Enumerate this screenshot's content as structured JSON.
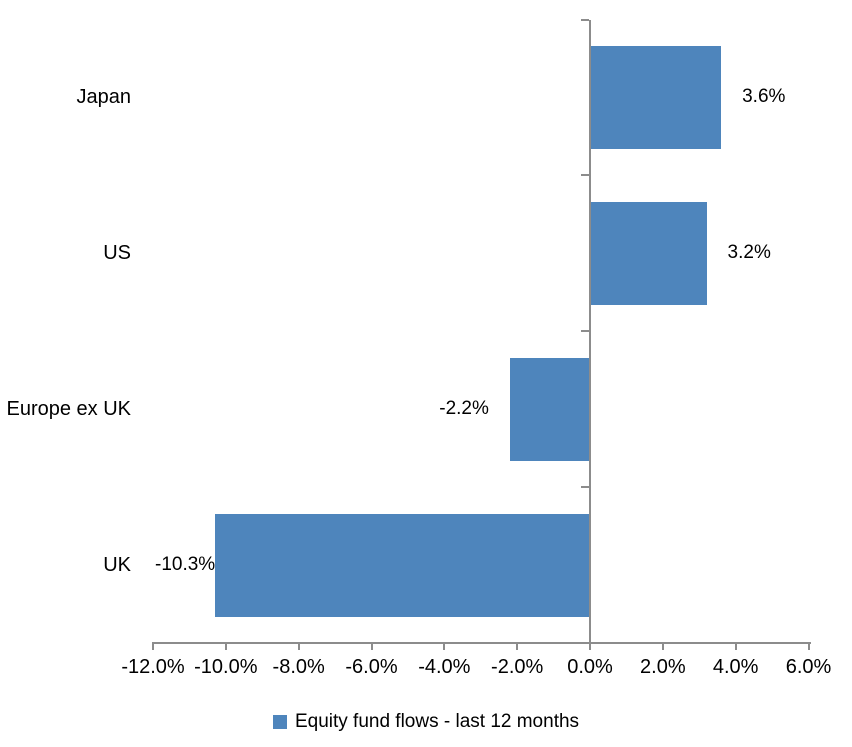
{
  "chart_data": {
    "type": "bar",
    "orientation": "horizontal",
    "title": "",
    "categories": [
      "Japan",
      "US",
      "Europe ex UK",
      "UK"
    ],
    "values": [
      3.6,
      3.2,
      -2.2,
      -10.3
    ],
    "value_labels": [
      "3.6%",
      "3.2%",
      "-2.2%",
      "-10.3%"
    ],
    "series": [
      {
        "name": "Equity fund flows - last 12 months",
        "values": [
          3.6,
          3.2,
          -2.2,
          -10.3
        ]
      }
    ],
    "xlabel": "",
    "ylabel": "",
    "xlim": [
      -12,
      6
    ],
    "xtick_values": [
      -12,
      -10,
      -8,
      -6,
      -4,
      -2,
      0,
      2,
      4,
      6
    ],
    "xtick_labels": [
      "-12.0%",
      "-10.0%",
      "-8.0%",
      "-6.0%",
      "-4.0%",
      "-2.0%",
      "0.0%",
      "2.0%",
      "4.0%",
      "6.0%"
    ],
    "grid": false,
    "legend_position": "bottom"
  },
  "legend": {
    "label": "Equity fund flows - last 12 months"
  },
  "colors": {
    "bar": "#4E85BC",
    "axis": "#8C8C8C",
    "text": "#000000",
    "background": "#FFFFFF"
  }
}
